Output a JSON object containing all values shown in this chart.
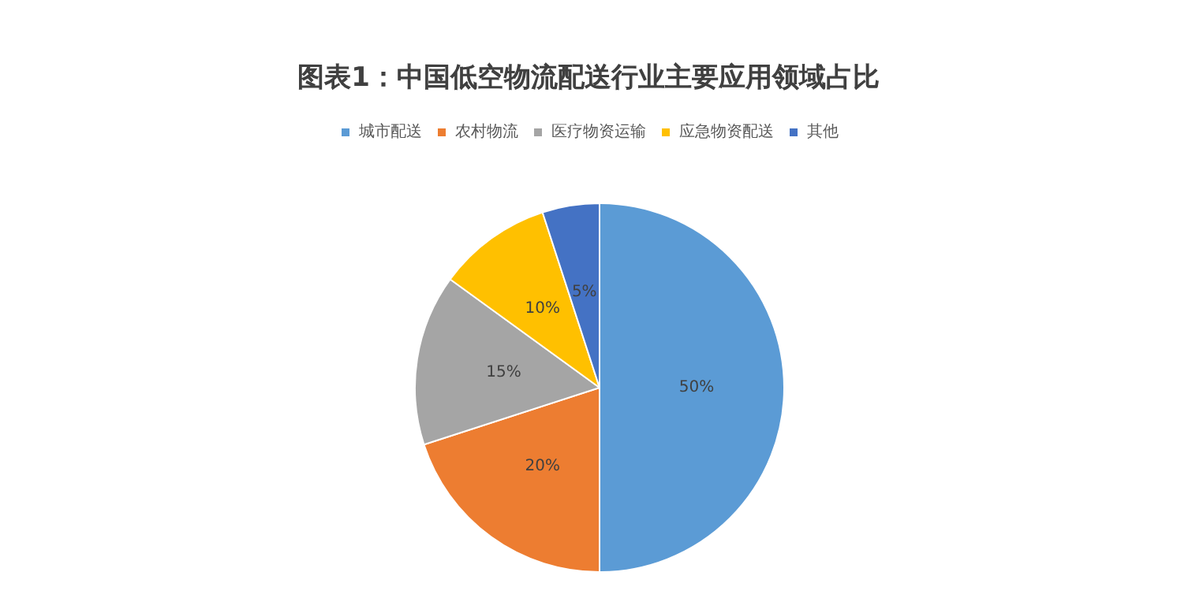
{
  "chart_data": {
    "type": "pie",
    "title": "图表1：中国低空物流配送行业主要应用领域占比",
    "categories": [
      "城市配送",
      "农村物流",
      "医疗物资运输",
      "应急物资配送",
      "其他"
    ],
    "values": [
      50,
      20,
      15,
      10,
      5
    ],
    "colors": [
      "#5b9bd5",
      "#ed7d31",
      "#a5a5a5",
      "#ffc000",
      "#4472c4"
    ],
    "value_labels": [
      "50%",
      "20%",
      "15%",
      "10%",
      "5%"
    ],
    "legend": "top"
  }
}
